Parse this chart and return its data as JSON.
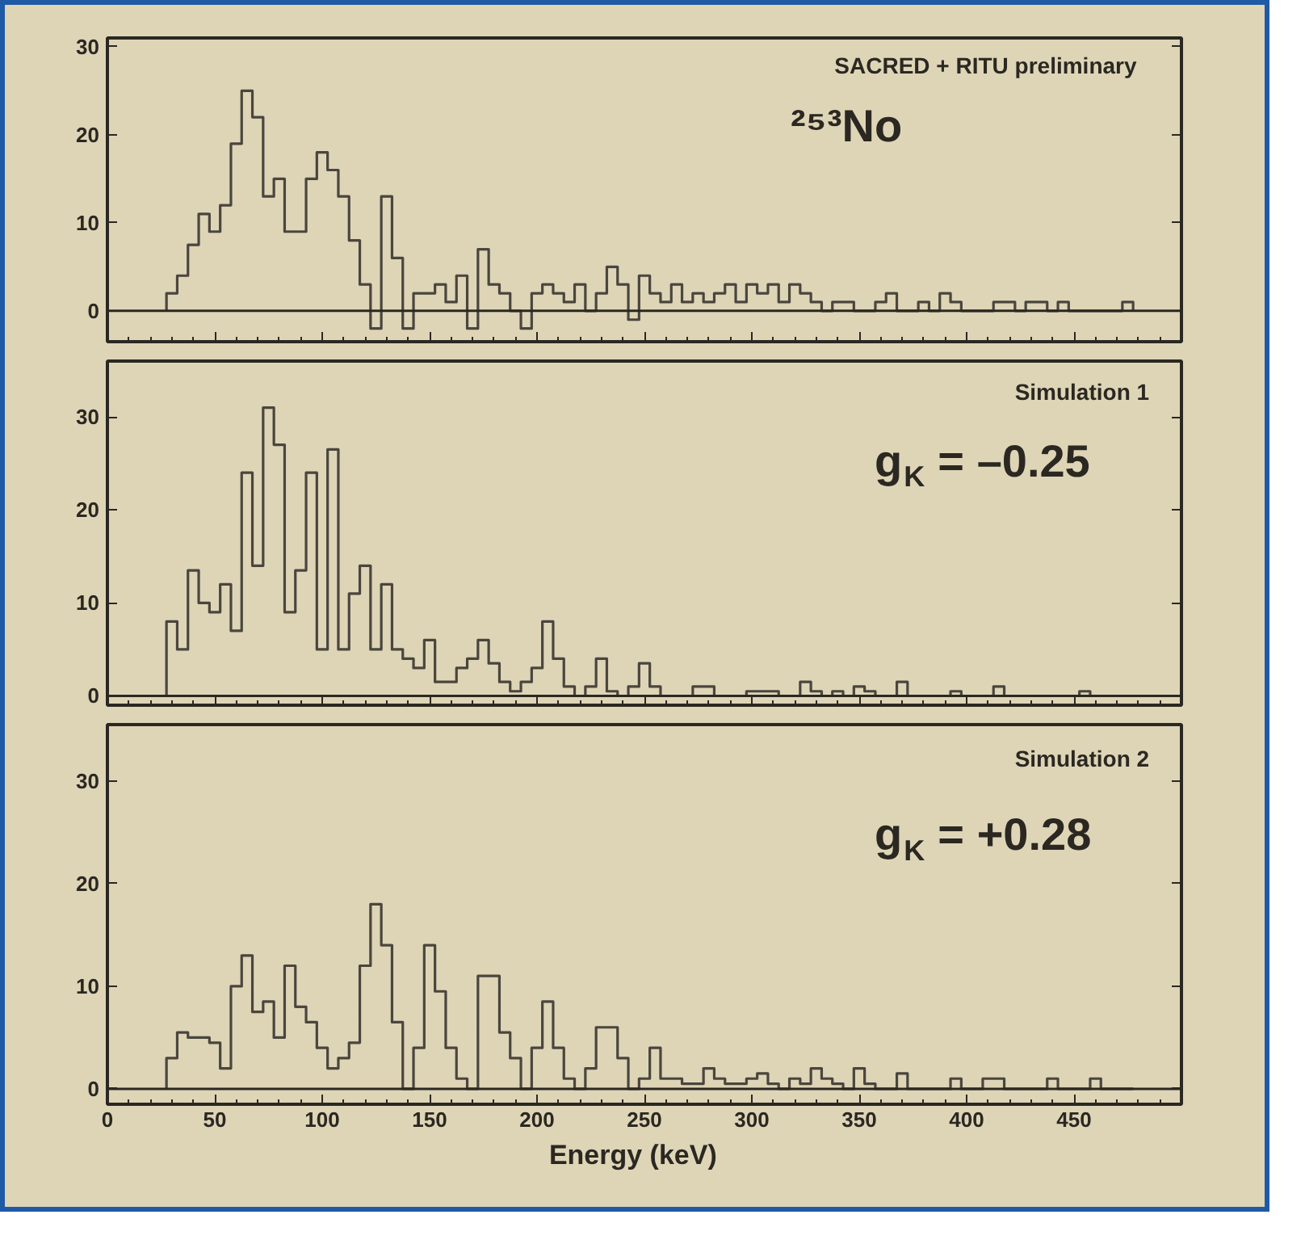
{
  "chart_data": [
    {
      "type": "histogram",
      "color": "#4a463e",
      "xlim": [
        0,
        500
      ],
      "xticks": [
        0,
        50,
        100,
        150,
        200,
        250,
        300,
        350,
        400,
        450
      ],
      "ylim": [
        -3.5,
        31
      ],
      "yticks": [
        0,
        10,
        20,
        30
      ],
      "tick_labels": "y",
      "annotations": [
        "SACRED + RITU   preliminary",
        "²⁵³No"
      ],
      "ref_lines": [
        {
          "axis": "y",
          "value": 0
        }
      ],
      "bins": [
        27.5,
        32.5,
        37.5,
        42.5,
        47.5,
        52.5,
        57.5,
        62.5,
        67.5,
        72.5,
        77.5,
        82.5,
        87.5,
        92.5,
        97.5,
        102.5,
        107.5,
        112.5,
        117.5,
        122.5,
        127.5,
        132.5,
        137.5,
        142.5,
        147.5,
        152.5,
        157.5,
        162.5,
        167.5,
        172.5,
        177.5,
        182.5,
        187.5,
        192.5,
        197.5,
        202.5,
        207.5,
        212.5,
        217.5,
        222.5,
        227.5,
        232.5,
        237.5,
        242.5,
        247.5,
        252.5,
        257.5,
        262.5,
        267.5,
        272.5,
        277.5,
        282.5,
        287.5,
        292.5,
        297.5,
        302.5,
        307.5,
        312.5,
        317.5,
        322.5,
        327.5,
        332.5,
        337.5,
        342.5,
        347.5,
        352.5,
        357.5,
        362.5,
        367.5,
        372.5,
        377.5,
        382.5,
        387.5,
        392.5,
        397.5,
        402.5,
        407.5,
        412.5,
        417.5,
        422.5,
        427.5,
        432.5,
        437.5,
        442.5,
        447.5,
        452.5,
        457.5,
        462.5,
        467.5,
        472.5,
        477.5
      ],
      "values": [
        2,
        4,
        7.5,
        11,
        9,
        12,
        19,
        25,
        22,
        13,
        15,
        9,
        9,
        15,
        18,
        16,
        13,
        8,
        3,
        -2,
        13,
        6,
        -2,
        2,
        2,
        3,
        1,
        4,
        -2,
        7,
        3,
        2,
        0,
        -2,
        2,
        3,
        2,
        1,
        3,
        0,
        2,
        5,
        3,
        -1,
        4,
        2,
        1,
        3,
        1,
        2,
        1,
        2,
        3,
        1,
        3,
        2,
        3,
        1,
        3,
        2,
        1,
        0,
        1,
        1,
        0,
        0,
        1,
        2,
        0,
        0,
        1,
        0,
        2,
        1,
        0,
        0,
        0,
        1,
        1,
        0,
        1,
        1,
        0,
        1,
        0,
        0,
        0,
        0,
        0,
        1
      ]
    },
    {
      "type": "histogram",
      "color": "#4a463e",
      "xlim": [
        0,
        500
      ],
      "xticks": [
        0,
        50,
        100,
        150,
        200,
        250,
        300,
        350,
        400,
        450
      ],
      "ylim": [
        -1,
        36
      ],
      "yticks": [
        0,
        10,
        20,
        30
      ],
      "tick_labels": "y",
      "annotations": [
        "Simulation 1",
        "g$_{K}$ = –0.25"
      ],
      "ref_lines": [
        {
          "axis": "y",
          "value": 0
        }
      ],
      "bins": [
        27.5,
        32.5,
        37.5,
        42.5,
        47.5,
        52.5,
        57.5,
        62.5,
        67.5,
        72.5,
        77.5,
        82.5,
        87.5,
        92.5,
        97.5,
        102.5,
        107.5,
        112.5,
        117.5,
        122.5,
        127.5,
        132.5,
        137.5,
        142.5,
        147.5,
        152.5,
        157.5,
        162.5,
        167.5,
        172.5,
        177.5,
        182.5,
        187.5,
        192.5,
        197.5,
        202.5,
        207.5,
        212.5,
        217.5,
        222.5,
        227.5,
        232.5,
        237.5,
        242.5,
        247.5,
        252.5,
        257.5,
        262.5,
        267.5,
        272.5,
        277.5,
        282.5,
        287.5,
        292.5,
        297.5,
        302.5,
        307.5,
        312.5,
        317.5,
        322.5,
        327.5,
        332.5,
        337.5,
        342.5,
        347.5,
        352.5,
        357.5,
        362.5,
        367.5,
        372.5,
        377.5,
        382.5,
        387.5,
        392.5,
        397.5,
        402.5,
        407.5,
        412.5,
        417.5,
        422.5,
        427.5,
        432.5,
        437.5,
        442.5,
        447.5,
        452.5,
        457.5,
        462.5,
        467.5,
        472.5,
        477.5
      ],
      "values": [
        8,
        5,
        13.5,
        10,
        9,
        12,
        7,
        24,
        14,
        31,
        27,
        9,
        13.5,
        24,
        5,
        26.5,
        5,
        11,
        14,
        5,
        12,
        5,
        4,
        3,
        6,
        1.5,
        1.5,
        3,
        4,
        6,
        3.5,
        1.5,
        0.5,
        1.5,
        3,
        8,
        4,
        1,
        0,
        1,
        4,
        0.5,
        0,
        1,
        3.5,
        1,
        0,
        0,
        0,
        1,
        1,
        0,
        0,
        0,
        0.5,
        0.5,
        0.5,
        0,
        0,
        1.5,
        0.5,
        0,
        0.5,
        0,
        1,
        0.5,
        0,
        0,
        1.5,
        0,
        0,
        0,
        0,
        0.5,
        0,
        0,
        0,
        1,
        0,
        0,
        0,
        0,
        0,
        0,
        0,
        0.5,
        0,
        0,
        0,
        0
      ]
    },
    {
      "type": "histogram",
      "color": "#4a463e",
      "xlim": [
        0,
        500
      ],
      "xticks": [
        0,
        50,
        100,
        150,
        200,
        250,
        300,
        350,
        400,
        450
      ],
      "ylim": [
        -1.5,
        35.5
      ],
      "yticks": [
        0,
        10,
        20,
        30
      ],
      "xlabel": "Energy    (keV)",
      "annotations": [
        "Simulation 2",
        "g$_{K}$ = +0.28"
      ],
      "ref_lines": [
        {
          "axis": "y",
          "value": 0
        }
      ],
      "bins": [
        27.5,
        32.5,
        37.5,
        42.5,
        47.5,
        52.5,
        57.5,
        62.5,
        67.5,
        72.5,
        77.5,
        82.5,
        87.5,
        92.5,
        97.5,
        102.5,
        107.5,
        112.5,
        117.5,
        122.5,
        127.5,
        132.5,
        137.5,
        142.5,
        147.5,
        152.5,
        157.5,
        162.5,
        167.5,
        172.5,
        177.5,
        182.5,
        187.5,
        192.5,
        197.5,
        202.5,
        207.5,
        212.5,
        217.5,
        222.5,
        227.5,
        232.5,
        237.5,
        242.5,
        247.5,
        252.5,
        257.5,
        262.5,
        267.5,
        272.5,
        277.5,
        282.5,
        287.5,
        292.5,
        297.5,
        302.5,
        307.5,
        312.5,
        317.5,
        322.5,
        327.5,
        332.5,
        337.5,
        342.5,
        347.5,
        352.5,
        357.5,
        362.5,
        367.5,
        372.5,
        377.5,
        382.5,
        387.5,
        392.5,
        397.5,
        402.5,
        407.5,
        412.5,
        417.5,
        422.5,
        427.5,
        432.5,
        437.5,
        442.5,
        447.5,
        452.5,
        457.5,
        462.5,
        467.5,
        472.5,
        477.5
      ],
      "values": [
        3,
        5.5,
        5,
        5,
        4.5,
        2,
        10,
        13,
        7.5,
        8.5,
        5,
        12,
        8,
        6.5,
        4,
        2,
        3,
        4.5,
        12,
        18,
        14,
        6.5,
        0,
        4,
        14,
        9.5,
        4,
        1,
        0,
        11,
        11,
        5.5,
        3,
        0,
        4,
        8.5,
        4,
        1,
        0,
        2,
        6,
        6,
        3,
        0,
        1,
        4,
        1,
        1,
        0.5,
        0.5,
        2,
        1,
        0.5,
        0.5,
        1,
        1.5,
        0.5,
        0,
        1,
        0.5,
        2,
        1,
        0.5,
        0,
        2,
        0.5,
        0,
        0,
        1.5,
        0,
        0,
        0,
        0,
        1,
        0,
        0,
        1,
        1,
        0,
        0,
        0,
        0,
        1,
        0,
        0,
        0,
        1,
        0,
        0,
        0
      ]
    }
  ]
}
